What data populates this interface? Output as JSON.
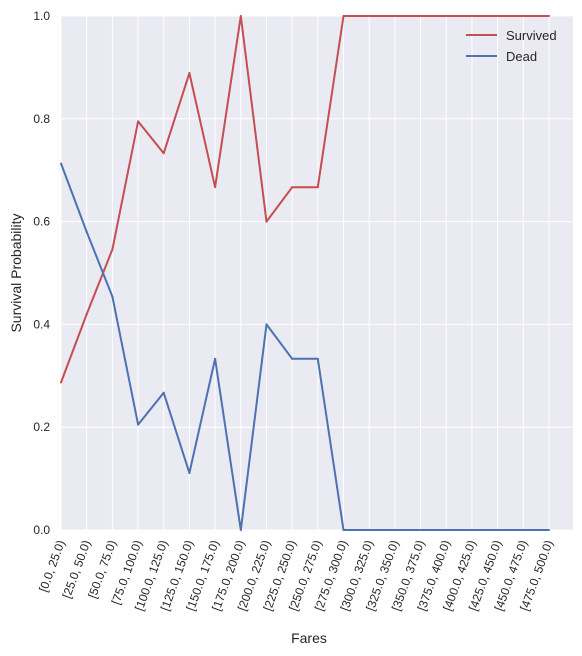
{
  "chart_data": {
    "type": "line",
    "title": "",
    "xlabel": "Fares",
    "ylabel": "Survival Probability",
    "ylim": [
      0,
      1
    ],
    "yticks": [
      "0.0",
      "0.2",
      "0.4",
      "0.6",
      "0.8",
      "1.0"
    ],
    "grid": true,
    "legend_position": "top-right",
    "categories": [
      "[0.0, 25.0)",
      "[25.0, 50.0)",
      "[50.0, 75.0)",
      "[75.0, 100.0)",
      "[100.0, 125.0)",
      "[125.0, 150.0)",
      "[150.0, 175.0)",
      "[175.0, 200.0)",
      "[200.0, 225.0)",
      "[225.0, 250.0)",
      "[250.0, 275.0)",
      "[275.0, 300.0)",
      "[300.0, 325.0)",
      "[325.0, 350.0)",
      "[350.0, 375.0)",
      "[375.0, 400.0)",
      "[400.0, 425.0)",
      "[425.0, 450.0)",
      "[450.0, 475.0)",
      "[475.0, 500.0)"
    ],
    "series": [
      {
        "name": "Survived",
        "color": "#c44e52",
        "values": [
          0.287,
          0.42,
          0.546,
          0.795,
          0.733,
          0.889,
          0.667,
          1.0,
          0.6,
          0.667,
          0.667,
          1.0,
          1.0,
          1.0,
          1.0,
          1.0,
          1.0,
          1.0,
          1.0,
          1.0
        ]
      },
      {
        "name": "Dead",
        "color": "#4c72b0",
        "values": [
          0.713,
          0.58,
          0.454,
          0.205,
          0.267,
          0.111,
          0.333,
          0.0,
          0.4,
          0.333,
          0.333,
          0.0,
          0.0,
          0.0,
          0.0,
          0.0,
          0.0,
          0.0,
          0.0,
          0.0
        ]
      }
    ]
  }
}
